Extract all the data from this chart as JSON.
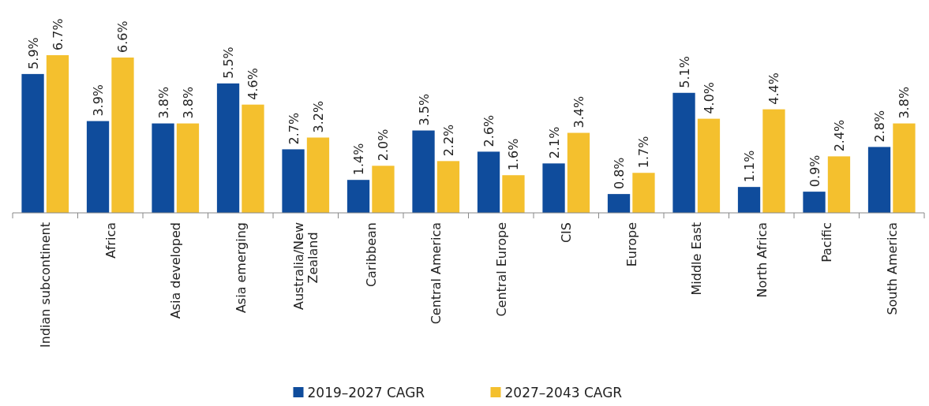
{
  "chart_data": {
    "type": "bar",
    "categories": [
      "Indian subcontinent",
      "Africa",
      "Asia developed",
      "Asia emerging",
      "Australia/New Zealand",
      "Caribbean",
      "Central America",
      "Central Europe",
      "CIS",
      "Europe",
      "Middle East",
      "North Africa",
      "Pacific",
      "South America"
    ],
    "series": [
      {
        "name": "2019–2027 CAGR",
        "color": "#0f4c9c",
        "values": [
          5.9,
          3.9,
          3.8,
          5.5,
          2.7,
          1.4,
          3.5,
          2.6,
          2.1,
          0.8,
          5.1,
          1.1,
          0.9,
          2.8
        ],
        "value_labels": [
          "5.9%",
          "3.9%",
          "3.8%",
          "5.5%",
          "2.7%",
          "1.4%",
          "3.5%",
          "2.6%",
          "2.1%",
          "0.8%",
          "5.1%",
          "1.1%",
          "0.9%",
          "2.8%"
        ]
      },
      {
        "name": "2027–2043 CAGR",
        "color": "#f4c02e",
        "values": [
          6.7,
          6.6,
          3.8,
          4.6,
          3.2,
          2.0,
          2.2,
          1.6,
          3.4,
          1.7,
          4.0,
          4.4,
          2.4,
          3.8
        ],
        "value_labels": [
          "6.7%",
          "6.6%",
          "3.8%",
          "4.6%",
          "3.2%",
          "2.0%",
          "2.2%",
          "1.6%",
          "3.4%",
          "1.7%",
          "4.0%",
          "4.4%",
          "2.4%",
          "3.8%"
        ]
      }
    ],
    "legend": "bottom"
  }
}
